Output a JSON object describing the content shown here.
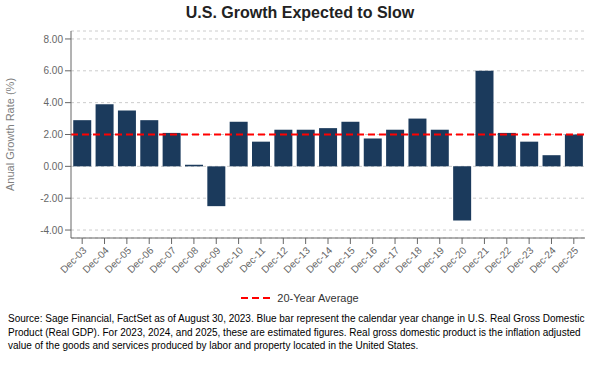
{
  "chart_data": {
    "type": "bar",
    "title": "U.S. Growth Expected to Slow",
    "ylabel": "Anual Growth Rate (%)",
    "categories": [
      "Dec-03",
      "Dec-04",
      "Dec-05",
      "Dec-06",
      "Dec-07",
      "Dec-08",
      "Dec-09",
      "Dec-10",
      "Dec-11",
      "Dec-12",
      "Dec-13",
      "Dec-14",
      "Dec-15",
      "Dec-16",
      "Dec-17",
      "Dec-18",
      "Dec-19",
      "Dec-20",
      "Dec-21",
      "Dec-22",
      "Dec-23",
      "Dec-24",
      "Dec-25"
    ],
    "values": [
      2.9,
      3.9,
      3.5,
      2.9,
      2.1,
      0.1,
      -2.5,
      2.8,
      1.55,
      2.3,
      2.3,
      2.4,
      2.8,
      1.75,
      2.3,
      3.0,
      2.3,
      -3.4,
      6.0,
      2.1,
      1.55,
      0.7,
      2.0
    ],
    "color": "#1b3a5c",
    "ylim": [
      -4.5,
      8.5
    ],
    "yticks": [
      {
        "value": -4,
        "label": "-4.00"
      },
      {
        "value": -2,
        "label": "-2.00"
      },
      {
        "value": 0,
        "label": "0.00"
      },
      {
        "value": 2,
        "label": "2.00"
      },
      {
        "value": 4,
        "label": "4.00"
      },
      {
        "value": 6,
        "label": "6.00"
      },
      {
        "value": 8,
        "label": "8.00"
      }
    ],
    "grid": true,
    "legend": "bottom",
    "average": {
      "name": "20-Year Average",
      "value": 2.0,
      "color": "#ff0000",
      "line_style": "dashed"
    },
    "annotations": [
      "Source: Sage Financial, FactSet as of August 30, 2023. Blue bar represent the calendar year change in U.S. Real Gross Domestic Product (Real GDP). For 2023, 2024, and 2025, these are estimated figures. Real gross domestic product is the inflation adjusted value of the goods and services produced by labor and property located in the United States."
    ]
  }
}
